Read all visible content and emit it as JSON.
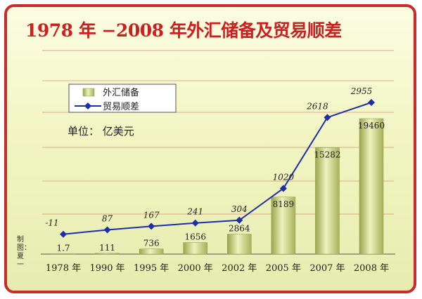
{
  "chart_data": {
    "type": "bar",
    "title": "1978 年 −2008 年外汇储备及贸易顺差",
    "unit_label": "单位： 亿美元",
    "credit": "制图：夏一",
    "categories": [
      "1978 年",
      "1990 年",
      "1995 年",
      "2000 年",
      "2002 年",
      "2005 年",
      "2007 年",
      "2008 年"
    ],
    "series": [
      {
        "name": "外汇储备",
        "kind": "bar",
        "values": [
          1.7,
          111,
          736,
          1656,
          2864,
          8189,
          15282,
          19460
        ],
        "labels": [
          "1.7",
          "111",
          "736",
          "1656",
          "2864",
          "8189",
          "15282",
          "19460"
        ]
      },
      {
        "name": "贸易顺差",
        "kind": "line",
        "values": [
          -11,
          87,
          167,
          241,
          304,
          1020,
          2618,
          2955
        ],
        "labels": [
          "-11",
          "87",
          "167",
          "241",
          "304",
          "1020",
          "2618",
          "2955"
        ]
      }
    ],
    "legend_position": "top-left",
    "grid": true,
    "colors": {
      "bar": "#b9c46a",
      "bar_light": "#e4eaa8",
      "line": "#1c2fa8",
      "title": "#cc1f1f",
      "grid": "#d06a5a",
      "frame": "#cc2a2a"
    }
  }
}
